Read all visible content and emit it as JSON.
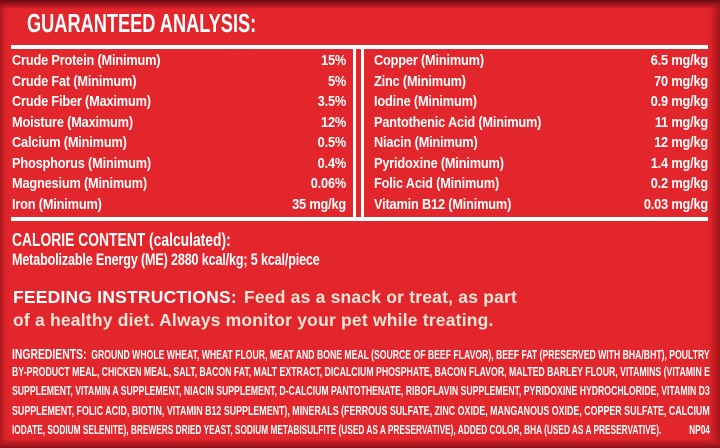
{
  "colors": {
    "background_red": "#e2262b",
    "edge_dark_red": "#8a1017",
    "text_white": "#ffffff",
    "feeding_body_cream": "#f7e6d8"
  },
  "guaranteed_analysis": {
    "title": "GUARANTEED ANALYSIS:",
    "left_rows": [
      {
        "label": "Crude Protein (Minimum)",
        "value": "15%"
      },
      {
        "label": "Crude Fat (Minimum)",
        "value": "5%"
      },
      {
        "label": "Crude Fiber (Maximum)",
        "value": "3.5%"
      },
      {
        "label": "Moisture (Maximum)",
        "value": "12%"
      },
      {
        "label": "Calcium (Minimum)",
        "value": "0.5%"
      },
      {
        "label": "Phosphorus (Minimum)",
        "value": "0.4%"
      },
      {
        "label": "Magnesium (Minimum)",
        "value": "0.06%"
      },
      {
        "label": "Iron (Minimum)",
        "value": "35 mg/kg"
      }
    ],
    "right_rows": [
      {
        "label": "Copper (Minimum)",
        "value": "6.5 mg/kg"
      },
      {
        "label": "Zinc (Minimum)",
        "value": "70 mg/kg"
      },
      {
        "label": "Iodine (Minimum)",
        "value": "0.9 mg/kg"
      },
      {
        "label": "Pantothenic Acid (Minimum)",
        "value": "11 mg/kg"
      },
      {
        "label": "Niacin (Minimum)",
        "value": "12 mg/kg"
      },
      {
        "label": "Pyridoxine (Minimum)",
        "value": "1.4 mg/kg"
      },
      {
        "label": "Folic Acid (Minimum)",
        "value": "0.2 mg/kg"
      },
      {
        "label": "Vitamin B12 (Minimum)",
        "value": "0.03 mg/kg"
      }
    ]
  },
  "calorie_content": {
    "title": "CALORIE CONTENT (calculated):",
    "detail": "Metabolizable Energy (ME) 2880 kcal/kg; 5 kcal/piece"
  },
  "feeding_instructions": {
    "title": "FEEDING INSTRUCTIONS:",
    "lines": [
      "Feed as a snack or treat, as part",
      "of a healthy diet. Always monitor your pet while treating."
    ]
  },
  "ingredients": {
    "title": "INGREDIENTS:",
    "lines": [
      "GROUND WHOLE WHEAT, WHEAT FLOUR, MEAT AND BONE MEAL (SOURCE OF BEEF FLAVOR), BEEF FAT (PRESERVED WITH BHA/BHT), POULTRY",
      "BY-PRODUCT MEAL, CHICKEN MEAL, SALT, BACON FAT, MALT EXTRACT, DICALCIUM PHOSPHATE, BACON FLAVOR, MALTED BARLEY FLOUR, VITAMINS (VITAMIN E",
      "SUPPLEMENT, VITAMIN A SUPPLEMENT, NIACIN SUPPLEMENT, D-CALCIUM PANTOTHENATE, RIBOFLAVIN SUPPLEMENT, PYRIDOXINE HYDROCHLORIDE, VITAMIN D3",
      "SUPPLEMENT, FOLIC ACID, BIOTIN, VITAMIN B12 SUPPLEMENT), MINERALS (FERROUS SULFATE, ZINC OXIDE, MANGANOUS OXIDE, COPPER SULFATE, CALCIUM",
      "IODATE, SODIUM SELENITE), BREWERS DRIED YEAST, SODIUM METABISULFITE (USED AS A PRESERVATIVE), ADDED COLOR, BHA (USED AS A PRESERVATIVE)."
    ],
    "code": "NP04"
  }
}
